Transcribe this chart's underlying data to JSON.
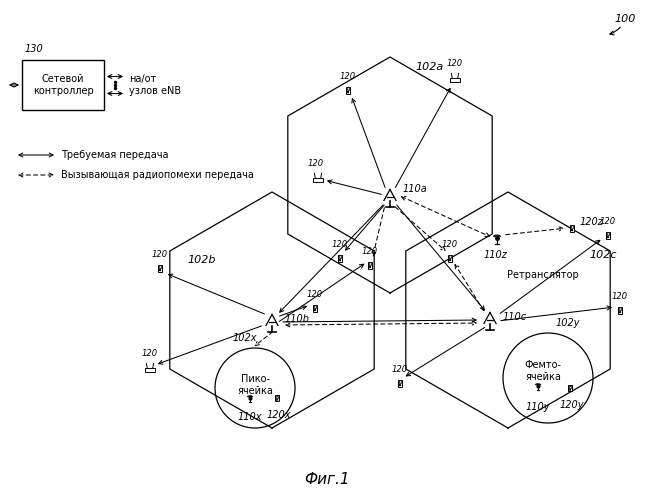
{
  "title": "Фиг.1",
  "bg_color": "#ffffff",
  "label_100": "100",
  "label_102a": "102a",
  "label_102b": "102b",
  "label_102c": "102c",
  "label_102x": "102x",
  "label_102y": "102y",
  "label_110a": "110a",
  "label_110b": "110b",
  "label_110c": "110c",
  "label_110x": "110x",
  "label_110y": "110y",
  "label_110z": "110z",
  "label_120": "120",
  "label_120x": "120x",
  "label_120y": "120y",
  "label_120z": "120z",
  "label_130": "130",
  "controller_text": "Сетевой\nконтроллер",
  "enb_text": "на/от\nузлов eNB",
  "legend_solid": "Требуемая передача",
  "legend_dashed": "Вызывающая радиопомехи передача",
  "relay_text": "Ретранслятор",
  "pico_text": "Пико-\nячейка",
  "femto_text": "Фемто-\nячейка",
  "font_size_label": 7,
  "font_size_title": 11
}
